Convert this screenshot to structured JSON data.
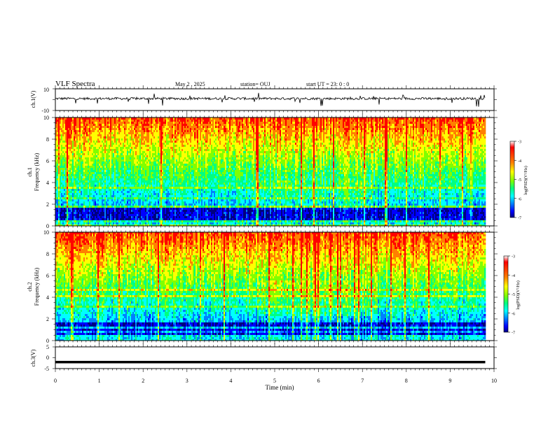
{
  "header": {
    "title": "VLF Spectra",
    "date": "May 2  , 2025",
    "station": "station= OUJ",
    "start": "start  UT  =   23: 0  : 0"
  },
  "colors": {
    "spectro_ramp": [
      "#000080",
      "#0000ff",
      "#0080ff",
      "#00ffff",
      "#00ff80",
      "#80ff00",
      "#ffff00",
      "#ff8000",
      "#ff0000",
      "#ffffff"
    ]
  },
  "chart_data": [
    {
      "type": "line",
      "panel": "ch1-waveform",
      "ylabel": "ch.1(V)",
      "ylim": [
        -10,
        10
      ],
      "yticks": [
        "10",
        "-10"
      ],
      "note": "noisy waveform around ~0 V with sporadic spikes"
    },
    {
      "type": "heatmap",
      "panel": "ch1-spectrogram",
      "ylabel_top": "ch.1",
      "ylabel": "Frequency  (kHz)",
      "ylim": [
        0,
        10
      ],
      "yticks": [
        "0",
        "2",
        "4",
        "6",
        "8",
        "10"
      ],
      "colorbar": {
        "label": "log(PSD)(V²/Hz)",
        "ticks": [
          "-3",
          "-4",
          "-5",
          "-6",
          "-7"
        ],
        "range": [
          -7,
          -3
        ]
      }
    },
    {
      "type": "heatmap",
      "panel": "ch2-spectrogram",
      "ylabel_top": "ch.2",
      "ylabel": "Frequency  (kHz)",
      "ylim": [
        0,
        10
      ],
      "yticks": [
        "0",
        "2",
        "4",
        "6",
        "8",
        "10"
      ],
      "colorbar": {
        "label": "log(PSD)(V²/Hz)",
        "ticks": [
          "-3",
          "-4",
          "-5",
          "-6",
          "-7"
        ],
        "range": [
          -7,
          -3
        ]
      }
    },
    {
      "type": "line",
      "panel": "ch3-waveform",
      "ylabel": "ch.3(V)",
      "ylim": [
        -5,
        5
      ],
      "yticks": [
        "5",
        "0",
        "-5"
      ],
      "note": "flat constant line near -2 V"
    }
  ],
  "xaxis": {
    "label": "Time  (min)",
    "range": [
      0,
      10
    ],
    "ticks": [
      "0",
      "1",
      "2",
      "3",
      "4",
      "5",
      "6",
      "7",
      "8",
      "9",
      "10"
    ],
    "data_end": 9.8
  }
}
